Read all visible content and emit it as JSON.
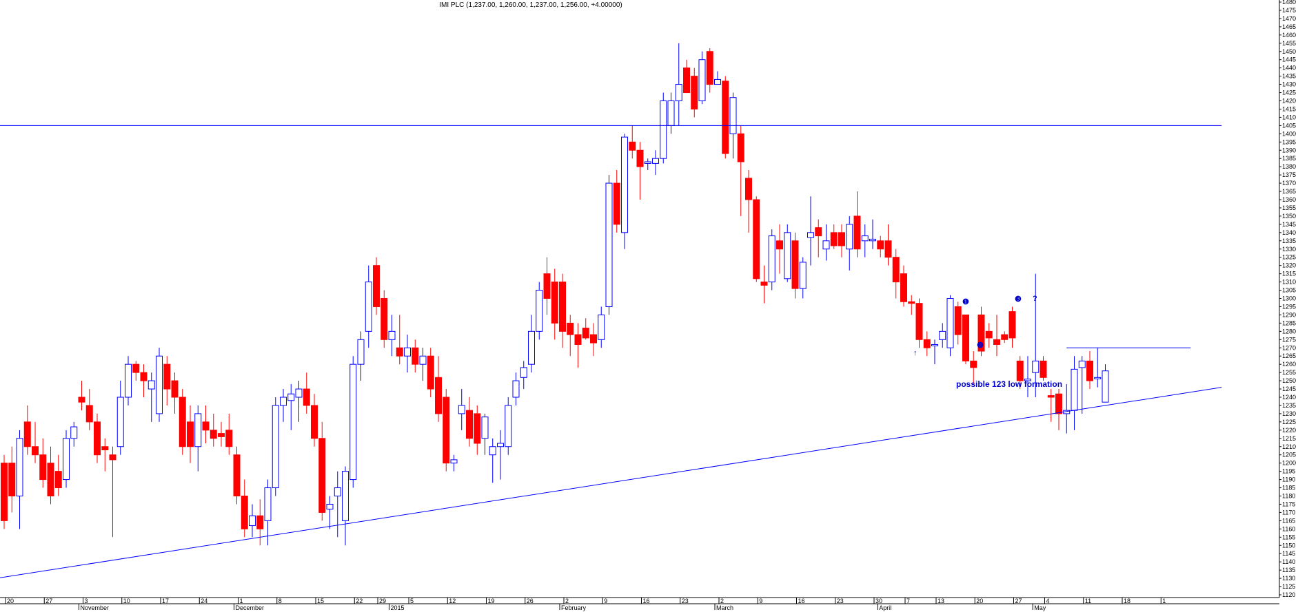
{
  "chart_data": {
    "type": "candlestick",
    "title": "IMI PLC (1,237.00, 1,260.00, 1,237.00, 1,256.00, +4.00000)",
    "ylim": [
      1120,
      1480
    ],
    "y_ticks": [
      1120,
      1125,
      1130,
      1135,
      1140,
      1145,
      1150,
      1155,
      1160,
      1165,
      1170,
      1175,
      1180,
      1185,
      1190,
      1195,
      1200,
      1205,
      1210,
      1215,
      1220,
      1225,
      1230,
      1235,
      1240,
      1245,
      1250,
      1255,
      1260,
      1265,
      1270,
      1275,
      1280,
      1285,
      1290,
      1295,
      1300,
      1305,
      1310,
      1315,
      1320,
      1325,
      1330,
      1335,
      1340,
      1345,
      1350,
      1355,
      1360,
      1365,
      1370,
      1375,
      1380,
      1385,
      1390,
      1395,
      1400,
      1405,
      1410,
      1415,
      1420,
      1425,
      1430,
      1435,
      1440,
      1445,
      1450,
      1455,
      1460,
      1465,
      1470,
      1475,
      1480
    ],
    "x_day_ticks": [
      {
        "label": "20",
        "idx": 0
      },
      {
        "label": "27",
        "idx": 5
      },
      {
        "label": "3",
        "idx": 10
      },
      {
        "label": "10",
        "idx": 15
      },
      {
        "label": "17",
        "idx": 20
      },
      {
        "label": "24",
        "idx": 25
      },
      {
        "label": "1",
        "idx": 30
      },
      {
        "label": "8",
        "idx": 35
      },
      {
        "label": "15",
        "idx": 40
      },
      {
        "label": "22",
        "idx": 45
      },
      {
        "label": "29",
        "idx": 48
      },
      {
        "label": "5",
        "idx": 52
      },
      {
        "label": "12",
        "idx": 57
      },
      {
        "label": "19",
        "idx": 62
      },
      {
        "label": "26",
        "idx": 67
      },
      {
        "label": "2",
        "idx": 72
      },
      {
        "label": "9",
        "idx": 77
      },
      {
        "label": "16",
        "idx": 82
      },
      {
        "label": "23",
        "idx": 87
      },
      {
        "label": "2",
        "idx": 92
      },
      {
        "label": "9",
        "idx": 97
      },
      {
        "label": "16",
        "idx": 102
      },
      {
        "label": "23",
        "idx": 107
      },
      {
        "label": "30",
        "idx": 112
      },
      {
        "label": "7",
        "idx": 116
      },
      {
        "label": "13",
        "idx": 120
      },
      {
        "label": "20",
        "idx": 125
      },
      {
        "label": "27",
        "idx": 130
      },
      {
        "label": "4",
        "idx": 134
      },
      {
        "label": "11",
        "idx": 139
      },
      {
        "label": "18",
        "idx": 144
      },
      {
        "label": "1",
        "idx": 149
      }
    ],
    "x_month_ticks": [
      {
        "label": "November",
        "idx": 10
      },
      {
        "label": "December",
        "idx": 30
      },
      {
        "label": "2015",
        "idx": 50
      },
      {
        "label": "February",
        "idx": 72
      },
      {
        "label": "March",
        "idx": 92
      },
      {
        "label": "April",
        "idx": 113
      },
      {
        "label": "May",
        "idx": 133
      }
    ],
    "candles": [
      {
        "o": 1200,
        "h": 1205,
        "l": 1160,
        "c": 1165
      },
      {
        "o": 1200,
        "h": 1210,
        "l": 1170,
        "c": 1180
      },
      {
        "o": 1180,
        "h": 1220,
        "l": 1160,
        "c": 1215
      },
      {
        "o": 1225,
        "h": 1235,
        "l": 1205,
        "c": 1210
      },
      {
        "o": 1210,
        "h": 1225,
        "l": 1200,
        "c": 1205
      },
      {
        "o": 1205,
        "h": 1215,
        "l": 1185,
        "c": 1190
      },
      {
        "o": 1200,
        "h": 1210,
        "l": 1175,
        "c": 1180
      },
      {
        "o": 1195,
        "h": 1205,
        "l": 1180,
        "c": 1185
      },
      {
        "o": 1190,
        "h": 1220,
        "l": 1185,
        "c": 1215
      },
      {
        "o": 1215,
        "h": 1225,
        "l": 1210,
        "c": 1222
      },
      {
        "o": 1240,
        "h": 1250,
        "l": 1232,
        "c": 1237
      },
      {
        "o": 1235,
        "h": 1245,
        "l": 1220,
        "c": 1225
      },
      {
        "o": 1225,
        "h": 1230,
        "l": 1200,
        "c": 1205
      },
      {
        "o": 1210,
        "h": 1215,
        "l": 1195,
        "c": 1208
      },
      {
        "o": 1205,
        "h": 1210,
        "l": 1155,
        "c": 1202
      },
      {
        "o": 1210,
        "h": 1250,
        "l": 1205,
        "c": 1240
      },
      {
        "o": 1240,
        "h": 1265,
        "l": 1235,
        "c": 1260
      },
      {
        "o": 1260,
        "h": 1262,
        "l": 1250,
        "c": 1255
      },
      {
        "o": 1255,
        "h": 1260,
        "l": 1240,
        "c": 1250
      },
      {
        "o": 1245,
        "h": 1255,
        "l": 1225,
        "c": 1250
      },
      {
        "o": 1230,
        "h": 1270,
        "l": 1225,
        "c": 1265
      },
      {
        "o": 1260,
        "h": 1265,
        "l": 1235,
        "c": 1245
      },
      {
        "o": 1250,
        "h": 1255,
        "l": 1230,
        "c": 1240
      },
      {
        "o": 1240,
        "h": 1245,
        "l": 1205,
        "c": 1210
      },
      {
        "o": 1225,
        "h": 1235,
        "l": 1200,
        "c": 1210
      },
      {
        "o": 1210,
        "h": 1235,
        "l": 1195,
        "c": 1230
      },
      {
        "o": 1225,
        "h": 1235,
        "l": 1212,
        "c": 1220
      },
      {
        "o": 1220,
        "h": 1230,
        "l": 1210,
        "c": 1215
      },
      {
        "o": 1218,
        "h": 1225,
        "l": 1210,
        "c": 1216
      },
      {
        "o": 1220,
        "h": 1230,
        "l": 1205,
        "c": 1210
      },
      {
        "o": 1205,
        "h": 1210,
        "l": 1175,
        "c": 1180
      },
      {
        "o": 1180,
        "h": 1190,
        "l": 1155,
        "c": 1160
      },
      {
        "o": 1162,
        "h": 1175,
        "l": 1155,
        "c": 1168
      },
      {
        "o": 1168,
        "h": 1178,
        "l": 1150,
        "c": 1160
      },
      {
        "o": 1165,
        "h": 1190,
        "l": 1150,
        "c": 1185
      },
      {
        "o": 1185,
        "h": 1240,
        "l": 1180,
        "c": 1235
      },
      {
        "o": 1235,
        "h": 1245,
        "l": 1225,
        "c": 1240
      },
      {
        "o": 1238,
        "h": 1248,
        "l": 1220,
        "c": 1242
      },
      {
        "o": 1240,
        "h": 1250,
        "l": 1225,
        "c": 1245
      },
      {
        "o": 1245,
        "h": 1255,
        "l": 1230,
        "c": 1235
      },
      {
        "o": 1235,
        "h": 1242,
        "l": 1210,
        "c": 1215
      },
      {
        "o": 1215,
        "h": 1225,
        "l": 1165,
        "c": 1170
      },
      {
        "o": 1172,
        "h": 1180,
        "l": 1160,
        "c": 1175
      },
      {
        "o": 1180,
        "h": 1195,
        "l": 1155,
        "c": 1185
      },
      {
        "o": 1165,
        "h": 1198,
        "l": 1150,
        "c": 1195
      },
      {
        "o": 1190,
        "h": 1265,
        "l": 1185,
        "c": 1260
      },
      {
        "o": 1260,
        "h": 1280,
        "l": 1250,
        "c": 1275
      },
      {
        "o": 1280,
        "h": 1320,
        "l": 1270,
        "c": 1310
      },
      {
        "o": 1320,
        "h": 1325,
        "l": 1290,
        "c": 1295
      },
      {
        "o": 1300,
        "h": 1305,
        "l": 1270,
        "c": 1275
      },
      {
        "o": 1275,
        "h": 1290,
        "l": 1265,
        "c": 1280
      },
      {
        "o": 1270,
        "h": 1290,
        "l": 1260,
        "c": 1265
      },
      {
        "o": 1265,
        "h": 1278,
        "l": 1255,
        "c": 1270
      },
      {
        "o": 1270,
        "h": 1275,
        "l": 1255,
        "c": 1260
      },
      {
        "o": 1260,
        "h": 1270,
        "l": 1250,
        "c": 1265
      },
      {
        "o": 1265,
        "h": 1270,
        "l": 1240,
        "c": 1245
      },
      {
        "o": 1252,
        "h": 1265,
        "l": 1225,
        "c": 1230
      },
      {
        "o": 1240,
        "h": 1245,
        "l": 1195,
        "c": 1200
      },
      {
        "o": 1200,
        "h": 1205,
        "l": 1195,
        "c": 1202
      },
      {
        "o": 1230,
        "h": 1245,
        "l": 1220,
        "c": 1235
      },
      {
        "o": 1232,
        "h": 1240,
        "l": 1210,
        "c": 1215
      },
      {
        "o": 1230,
        "h": 1235,
        "l": 1205,
        "c": 1212
      },
      {
        "o": 1215,
        "h": 1230,
        "l": 1205,
        "c": 1228
      },
      {
        "o": 1205,
        "h": 1215,
        "l": 1188,
        "c": 1210
      },
      {
        "o": 1210,
        "h": 1220,
        "l": 1190,
        "c": 1212
      },
      {
        "o": 1210,
        "h": 1240,
        "l": 1205,
        "c": 1235
      },
      {
        "o": 1240,
        "h": 1255,
        "l": 1235,
        "c": 1250
      },
      {
        "o": 1252,
        "h": 1262,
        "l": 1245,
        "c": 1258
      },
      {
        "o": 1260,
        "h": 1290,
        "l": 1255,
        "c": 1280
      },
      {
        "o": 1280,
        "h": 1310,
        "l": 1275,
        "c": 1305
      },
      {
        "o": 1315,
        "h": 1325,
        "l": 1290,
        "c": 1300
      },
      {
        "o": 1310,
        "h": 1318,
        "l": 1275,
        "c": 1285
      },
      {
        "o": 1310,
        "h": 1315,
        "l": 1270,
        "c": 1280
      },
      {
        "o": 1285,
        "h": 1290,
        "l": 1265,
        "c": 1278
      },
      {
        "o": 1278,
        "h": 1285,
        "l": 1258,
        "c": 1272
      },
      {
        "o": 1282,
        "h": 1288,
        "l": 1275,
        "c": 1276
      },
      {
        "o": 1278,
        "h": 1285,
        "l": 1265,
        "c": 1273
      },
      {
        "o": 1275,
        "h": 1295,
        "l": 1270,
        "c": 1290
      },
      {
        "o": 1295,
        "h": 1375,
        "l": 1290,
        "c": 1370
      },
      {
        "o": 1370,
        "h": 1378,
        "l": 1340,
        "c": 1345
      },
      {
        "o": 1340,
        "h": 1400,
        "l": 1330,
        "c": 1398
      },
      {
        "o": 1395,
        "h": 1405,
        "l": 1385,
        "c": 1390
      },
      {
        "o": 1390,
        "h": 1395,
        "l": 1360,
        "c": 1380
      },
      {
        "o": 1382,
        "h": 1385,
        "l": 1378,
        "c": 1383
      },
      {
        "o": 1382,
        "h": 1390,
        "l": 1375,
        "c": 1385
      },
      {
        "o": 1385,
        "h": 1425,
        "l": 1382,
        "c": 1420
      },
      {
        "o": 1405,
        "h": 1425,
        "l": 1400,
        "c": 1420
      },
      {
        "o": 1420,
        "h": 1455,
        "l": 1405,
        "c": 1430
      },
      {
        "o": 1440,
        "h": 1445,
        "l": 1425,
        "c": 1425
      },
      {
        "o": 1435,
        "h": 1440,
        "l": 1410,
        "c": 1415
      },
      {
        "o": 1420,
        "h": 1450,
        "l": 1418,
        "c": 1445
      },
      {
        "o": 1450,
        "h": 1452,
        "l": 1425,
        "c": 1430
      },
      {
        "o": 1430,
        "h": 1438,
        "l": 1430,
        "c": 1433
      },
      {
        "o": 1432,
        "h": 1435,
        "l": 1385,
        "c": 1388
      },
      {
        "o": 1400,
        "h": 1425,
        "l": 1385,
        "c": 1422
      },
      {
        "o": 1400,
        "h": 1405,
        "l": 1350,
        "c": 1383
      },
      {
        "o": 1373,
        "h": 1378,
        "l": 1340,
        "c": 1360
      },
      {
        "o": 1360,
        "h": 1362,
        "l": 1310,
        "c": 1312
      },
      {
        "o": 1310,
        "h": 1320,
        "l": 1297,
        "c": 1308
      },
      {
        "o": 1310,
        "h": 1342,
        "l": 1305,
        "c": 1338
      },
      {
        "o": 1335,
        "h": 1345,
        "l": 1315,
        "c": 1330
      },
      {
        "o": 1312,
        "h": 1345,
        "l": 1310,
        "c": 1340
      },
      {
        "o": 1335,
        "h": 1340,
        "l": 1300,
        "c": 1306
      },
      {
        "o": 1306,
        "h": 1325,
        "l": 1300,
        "c": 1322
      },
      {
        "o": 1337,
        "h": 1362,
        "l": 1320,
        "c": 1340
      },
      {
        "o": 1343,
        "h": 1348,
        "l": 1325,
        "c": 1338
      },
      {
        "o": 1330,
        "h": 1345,
        "l": 1323,
        "c": 1335
      },
      {
        "o": 1340,
        "h": 1345,
        "l": 1330,
        "c": 1332
      },
      {
        "o": 1340,
        "h": 1345,
        "l": 1325,
        "c": 1332
      },
      {
        "o": 1330,
        "h": 1350,
        "l": 1317,
        "c": 1345
      },
      {
        "o": 1350,
        "h": 1365,
        "l": 1325,
        "c": 1330
      },
      {
        "o": 1335,
        "h": 1345,
        "l": 1325,
        "c": 1338
      },
      {
        "o": 1335,
        "h": 1348,
        "l": 1330,
        "c": 1336
      },
      {
        "o": 1335,
        "h": 1338,
        "l": 1325,
        "c": 1330
      },
      {
        "o": 1335,
        "h": 1345,
        "l": 1320,
        "c": 1325
      },
      {
        "o": 1325,
        "h": 1330,
        "l": 1300,
        "c": 1310
      },
      {
        "o": 1315,
        "h": 1320,
        "l": 1295,
        "c": 1298
      },
      {
        "o": 1298,
        "h": 1302,
        "l": 1290,
        "c": 1297
      },
      {
        "o": 1297,
        "h": 1300,
        "l": 1270,
        "c": 1275
      },
      {
        "o": 1275,
        "h": 1280,
        "l": 1265,
        "c": 1270
      },
      {
        "o": 1272,
        "h": 1275,
        "l": 1260,
        "c": 1272
      },
      {
        "o": 1275,
        "h": 1285,
        "l": 1270,
        "c": 1280
      },
      {
        "o": 1270,
        "h": 1302,
        "l": 1265,
        "c": 1300
      },
      {
        "o": 1295,
        "h": 1298,
        "l": 1272,
        "c": 1278
      },
      {
        "o": 1290,
        "h": 1290,
        "l": 1260,
        "c": 1262
      },
      {
        "o": 1262,
        "h": 1268,
        "l": 1248,
        "c": 1258
      },
      {
        "o": 1290,
        "h": 1295,
        "l": 1265,
        "c": 1268
      },
      {
        "o": 1280,
        "h": 1285,
        "l": 1270,
        "c": 1276
      },
      {
        "o": 1275,
        "h": 1290,
        "l": 1265,
        "c": 1272
      },
      {
        "o": 1278,
        "h": 1280,
        "l": 1273,
        "c": 1275
      },
      {
        "o": 1292,
        "h": 1295,
        "l": 1270,
        "c": 1276
      },
      {
        "o": 1262,
        "h": 1265,
        "l": 1245,
        "c": 1250
      },
      {
        "o": 1250,
        "h": 1265,
        "l": 1240,
        "c": 1251
      },
      {
        "o": 1255,
        "h": 1315,
        "l": 1240,
        "c": 1262
      },
      {
        "o": 1262,
        "h": 1265,
        "l": 1250,
        "c": 1252
      },
      {
        "o": 1241,
        "h": 1245,
        "l": 1225,
        "c": 1240
      },
      {
        "o": 1242,
        "h": 1245,
        "l": 1220,
        "c": 1230
      },
      {
        "o": 1230,
        "h": 1248,
        "l": 1218,
        "c": 1232
      },
      {
        "o": 1232,
        "h": 1265,
        "l": 1220,
        "c": 1257
      },
      {
        "o": 1258,
        "h": 1265,
        "l": 1230,
        "c": 1262
      },
      {
        "o": 1262,
        "h": 1268,
        "l": 1245,
        "c": 1250
      },
      {
        "o": 1252,
        "h": 1270,
        "l": 1246,
        "c": 1252
      },
      {
        "o": 1237,
        "h": 1260,
        "l": 1237,
        "c": 1256
      }
    ],
    "horizontal_lines": [
      {
        "y": 1405,
        "x_from_idx": -1,
        "x_to_idx": 157
      }
    ],
    "segment_lines": [
      {
        "x1_idx": 137,
        "y1": 1270,
        "x2_idx": 153,
        "y2": 1270
      }
    ],
    "trend_lines": [
      {
        "x1_idx": -1,
        "y1": 1130,
        "x2_idx": 157,
        "y2": 1246
      }
    ],
    "annotations": [
      {
        "text": "possible 123 low formation",
        "kind": "label"
      },
      {
        "text": "❶",
        "kind": "marker"
      },
      {
        "text": "❷",
        "kind": "marker"
      },
      {
        "text": "❸",
        "kind": "marker"
      },
      {
        "text": "?",
        "kind": "marker"
      },
      {
        "text": "↑",
        "kind": "marker"
      }
    ],
    "colors": {
      "up_outline": "#0000ff",
      "down_fill": "#ff0000",
      "line": "#0000ff",
      "annotation": "#0000cc",
      "axis": "#000000",
      "background": "#ffffff"
    },
    "grid": false
  }
}
